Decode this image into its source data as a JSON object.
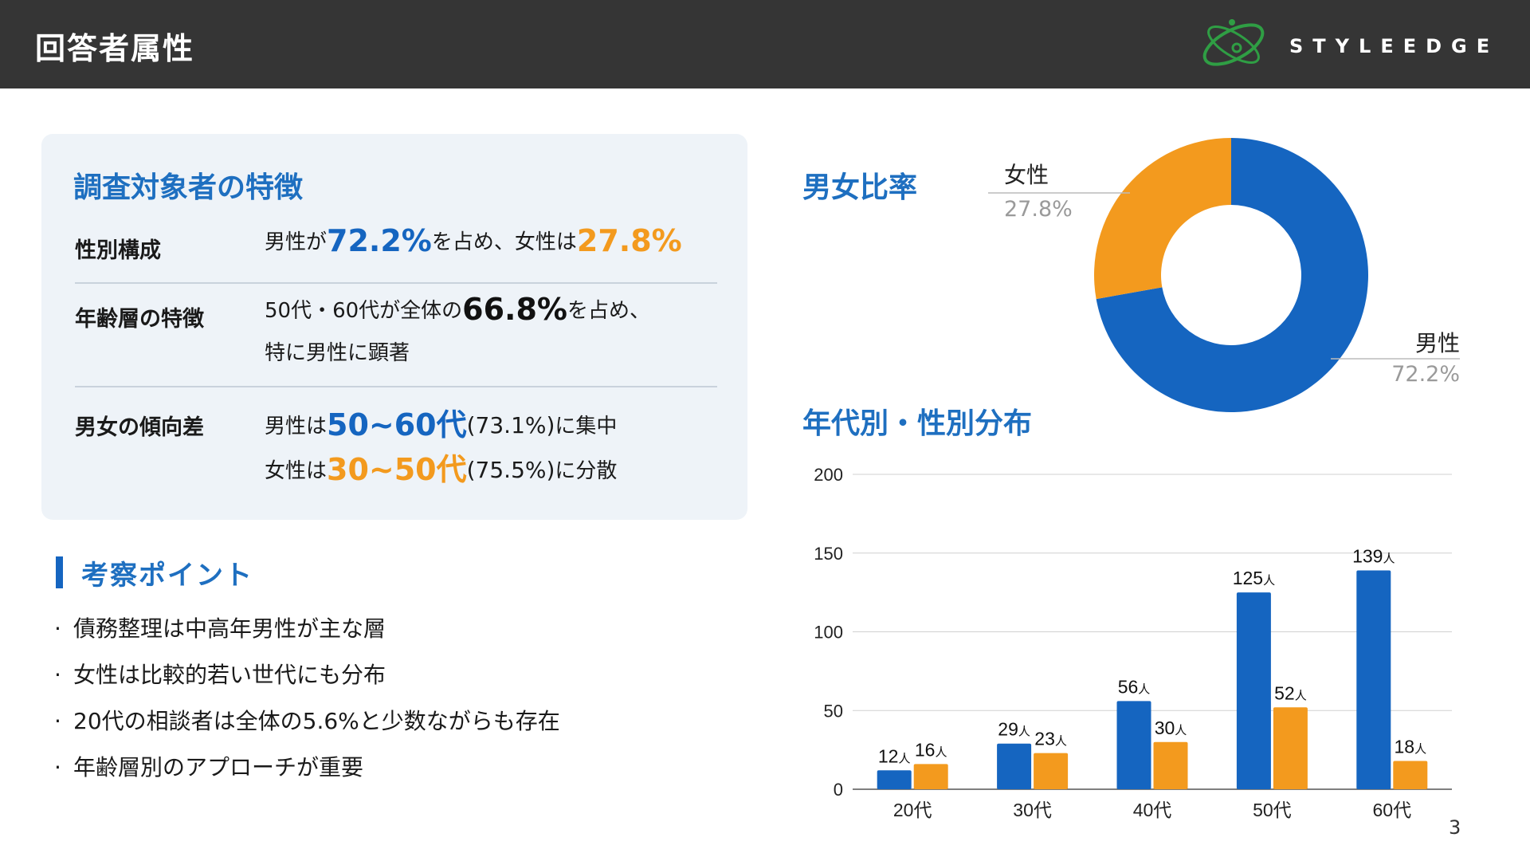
{
  "header": {
    "title": "回答者属性",
    "logo_text": "STYLEEDGE"
  },
  "panel": {
    "title": "調査対象者の特徴",
    "rows": [
      {
        "label": "性別構成",
        "t1": "男性が",
        "v1": "72.2%",
        "t2": "を占め、女性は",
        "v2": "27.8%"
      },
      {
        "label": "年齢層の特徴",
        "t1": "50代・60代が全体の",
        "v1": "66.8%",
        "t2": "を占め、",
        "line2": "特に男性に顕著"
      },
      {
        "label": "男女の傾向差",
        "a1": "男性は",
        "av": "50~60代",
        "ap": "(73.1%)",
        "a2": "に集中",
        "b1": "女性は",
        "bv": "30~50代",
        "bp": "(75.5%)",
        "b2": "に分散"
      }
    ]
  },
  "points": {
    "title": "考察ポイント",
    "items": [
      "債務整理は中高年男性が主な層",
      "女性は比較的若い世代にも分布",
      "20代の相談者は全体の5.6%と少数ながらも存在",
      "年齢層別のアプローチが重要"
    ]
  },
  "colors": {
    "male": "#1565c0",
    "female": "#f39a1e",
    "accent": "#1e6fc0"
  },
  "page_number": "3",
  "chart_data": [
    {
      "type": "pie",
      "title": "男女比率",
      "donut": true,
      "slices": [
        {
          "label": "男性",
          "value": 72.2,
          "value_label": "72.2%"
        },
        {
          "label": "女性",
          "value": 27.8,
          "value_label": "27.8%"
        }
      ]
    },
    {
      "type": "bar",
      "title": "年代別・性別分布",
      "categories": [
        "20代",
        "30代",
        "40代",
        "50代",
        "60代"
      ],
      "series": [
        {
          "values": [
            12,
            29,
            56,
            125,
            139
          ]
        },
        {
          "values": [
            16,
            23,
            30,
            52,
            18
          ]
        }
      ],
      "unit": "人",
      "ylim": [
        0,
        200
      ],
      "yticks": [
        0,
        50,
        100,
        150,
        200
      ],
      "grid": true
    }
  ]
}
